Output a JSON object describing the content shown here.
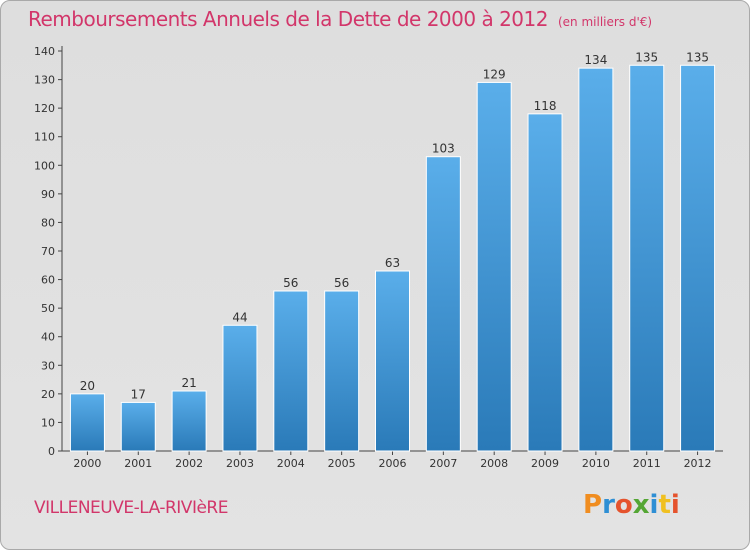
{
  "header": {
    "title": "Remboursements Annuels de la Dette de 2000 à 2012",
    "unit": "(en milliers d'€)"
  },
  "footer": {
    "commune": "VILLENEUVE-LA-RIVIèRE",
    "logo": [
      "P",
      "r",
      "o",
      "x",
      "i",
      "t",
      "i"
    ]
  },
  "chart_data": {
    "type": "bar",
    "title": "Remboursements Annuels de la Dette de 2000 à 2012",
    "subtitle": "(en milliers d'€)",
    "xlabel": "",
    "ylabel": "",
    "categories": [
      "2000",
      "2001",
      "2002",
      "2003",
      "2004",
      "2005",
      "2006",
      "2007",
      "2008",
      "2009",
      "2010",
      "2011",
      "2012"
    ],
    "values": [
      20,
      17,
      21,
      44,
      56,
      56,
      63,
      103,
      129,
      118,
      134,
      135,
      135
    ],
    "ylim": [
      0,
      140
    ],
    "yticks": [
      0,
      10,
      20,
      30,
      40,
      50,
      60,
      70,
      80,
      90,
      100,
      110,
      120,
      130,
      140
    ],
    "grid": false,
    "colors": {
      "bar_top": "#5aaeea",
      "bar_bottom": "#2a7ab8",
      "bar_edge": "#ffffff"
    }
  }
}
